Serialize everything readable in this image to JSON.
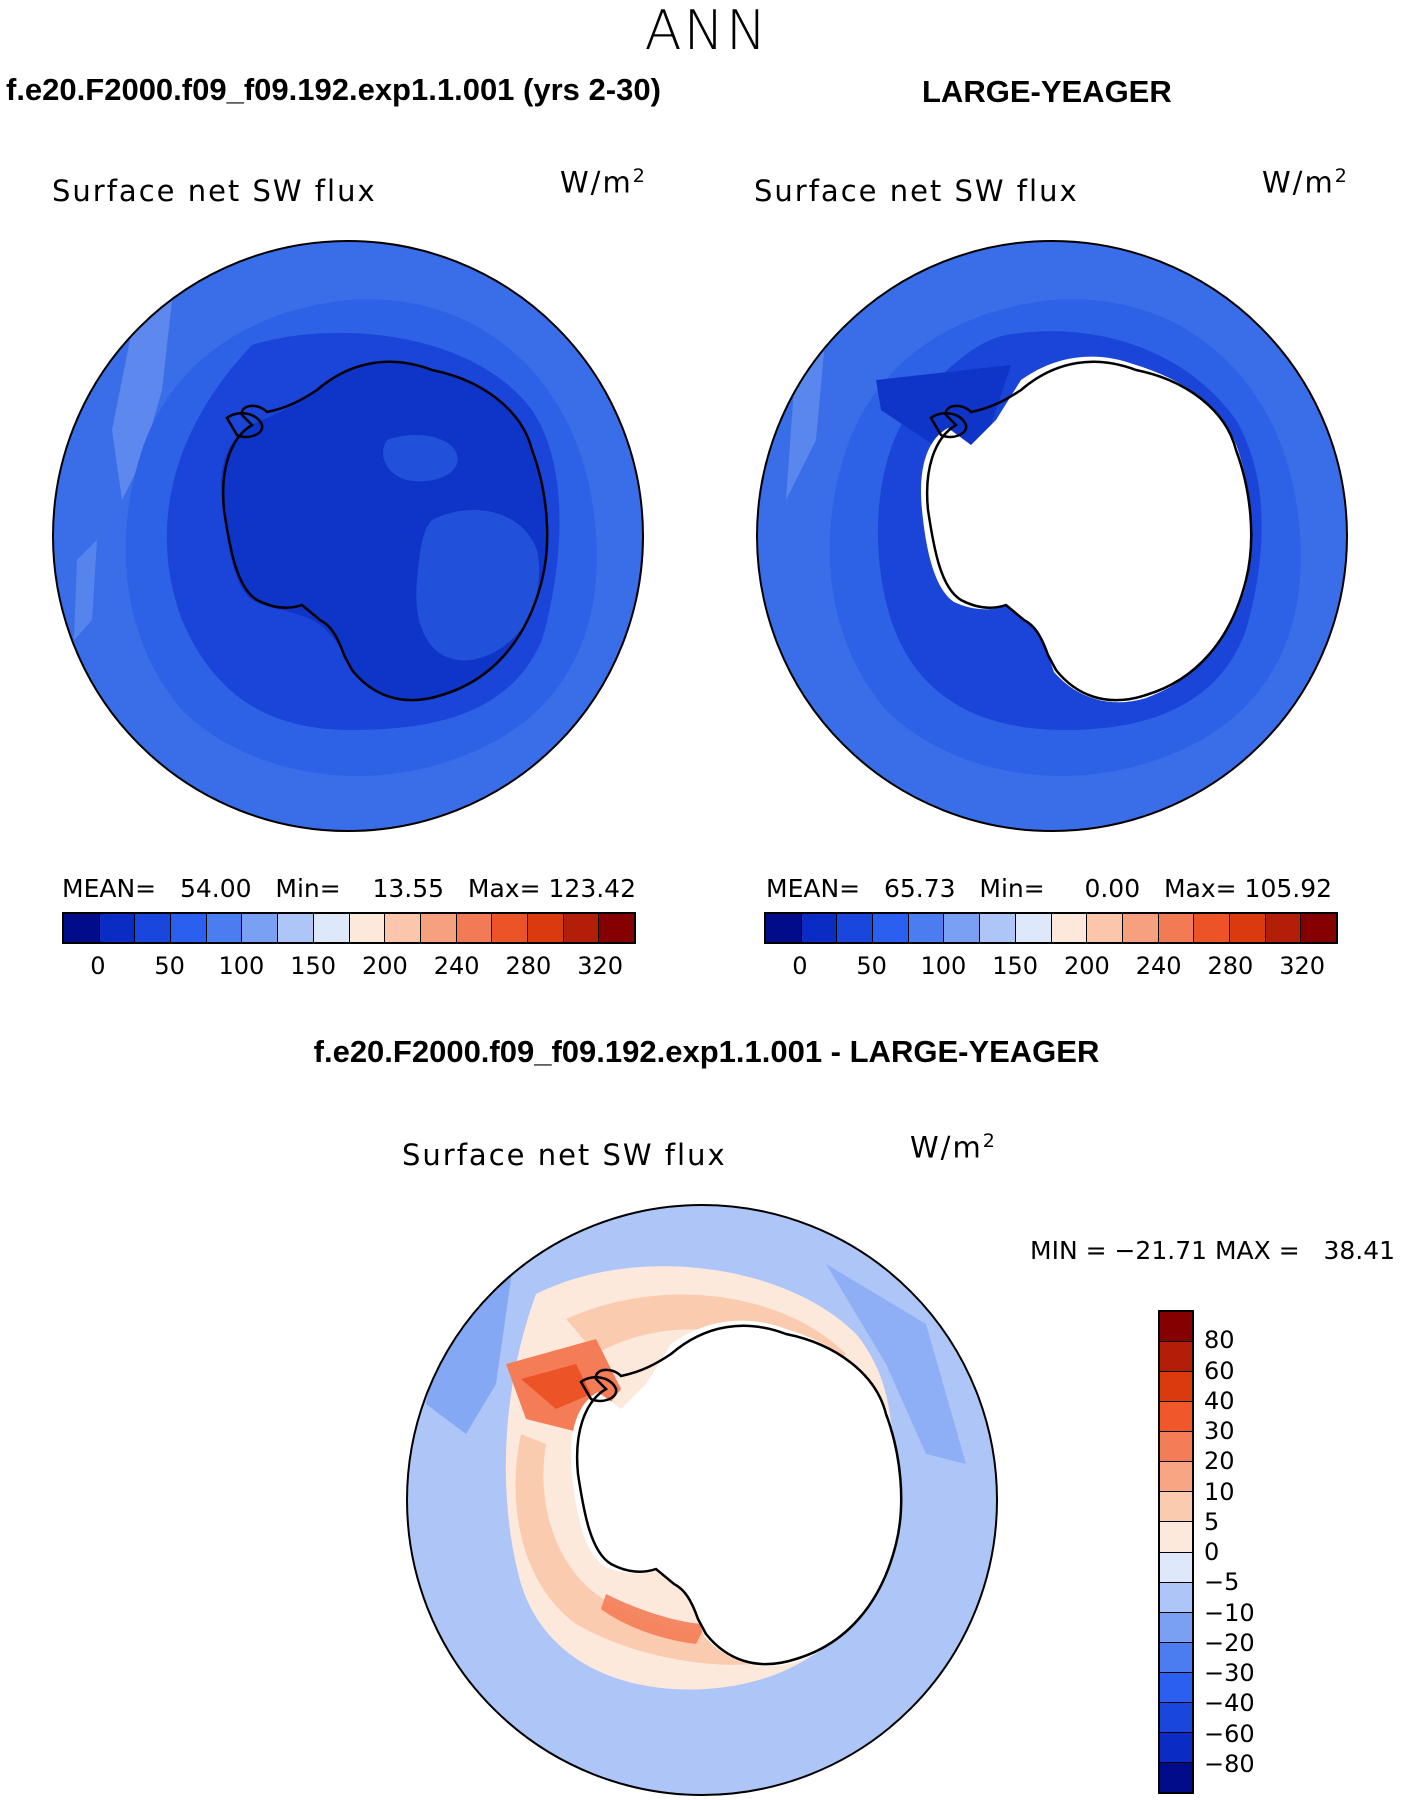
{
  "figure": {
    "season": "ANN",
    "diff_title": "f.e20.F2000.f09_f09.192.exp1.1.001 - LARGE-YEAGER"
  },
  "panels": [
    {
      "case_title": "f.e20.F2000.f09_f09.192.exp1.1.001 (yrs 2-30)",
      "variable": "Surface net SW flux",
      "units": "W/m",
      "units_exp": "2",
      "mean_label": "MEAN=",
      "mean": "54.00",
      "min_label": "Min=",
      "min": "13.55",
      "max_label": "Max=",
      "max": "123.42"
    },
    {
      "case_title": "LARGE-YEAGER",
      "variable": "Surface net SW flux",
      "units": "W/m",
      "units_exp": "2",
      "mean_label": "MEAN=",
      "mean": "65.73",
      "min_label": "Min=",
      "min": "0.00",
      "max_label": "Max=",
      "max": "105.92"
    }
  ],
  "diff_panel": {
    "variable": "Surface net SW flux",
    "units": "W/m",
    "units_exp": "2",
    "minmax": "MIN = −21.71 MAX =   38.41"
  },
  "colorbar_abs": {
    "labels": [
      "0",
      "50",
      "100",
      "150",
      "200",
      "240",
      "280",
      "320"
    ],
    "colors": [
      "#000c8a",
      "#0a2bc4",
      "#1947dd",
      "#2b5fef",
      "#4c7df0",
      "#7aa0f3",
      "#adc6f7",
      "#dde9fb",
      "#fde9dc",
      "#fbc6ac",
      "#f7a07e",
      "#f27a55",
      "#ec5326",
      "#da3a0c",
      "#b21e07",
      "#850000"
    ]
  },
  "colorbar_diff": {
    "labels": [
      "80",
      "60",
      "40",
      "30",
      "20",
      "10",
      "5",
      "0",
      "−5",
      "−10",
      "−20",
      "−30",
      "−40",
      "−60",
      "−80"
    ],
    "colors": [
      "#850000",
      "#b21e07",
      "#da3a0c",
      "#f0572a",
      "#f47d57",
      "#f8a584",
      "#fbcbb0",
      "#fde9dc",
      "#dde9fb",
      "#adc6f7",
      "#7aa0f3",
      "#4c7df0",
      "#2b5fef",
      "#1947dd",
      "#0a2bc4",
      "#000c8a"
    ]
  },
  "map_colors": {
    "ocean_outer": "#3a6ee8",
    "ocean_mid": "#2e62e6",
    "ocean_inner": "#1a45d8",
    "land_dark": "#0f35c8",
    "land_mid": "#2455dc",
    "light_patch": "#7aa0f3",
    "white": "#ffffff",
    "diff_bg": "#adc6f7",
    "diff_mid": "#7aa0f3",
    "diff_pink": "#fbcbb0",
    "diff_cream": "#fde9dc",
    "diff_orange": "#f47d57",
    "diff_red": "#ec5326"
  }
}
